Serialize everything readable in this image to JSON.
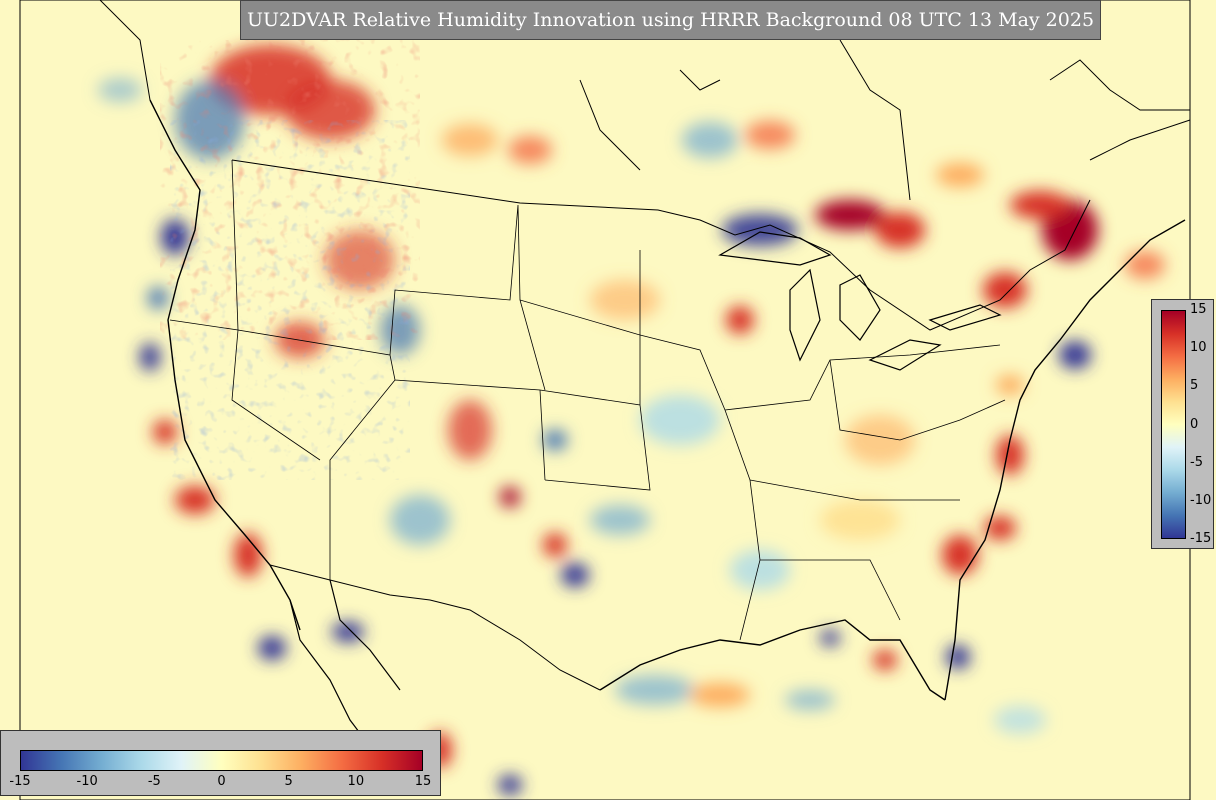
{
  "title": "UU2DVAR Relative Humidity Innovation using HRRR Background 08 UTC 13 May 2025",
  "colorbar": {
    "min": -15,
    "max": 15,
    "right_ticks": [
      "15",
      "10",
      "5",
      "0",
      "-5",
      "-10",
      "-15"
    ],
    "bottom_ticks": [
      "-15",
      "-10",
      "-5",
      "0",
      "5",
      "10",
      "15"
    ],
    "colors": [
      "#313695",
      "#4575b4",
      "#74add1",
      "#abd9e9",
      "#e0f3f8",
      "#ffffbf",
      "#fee090",
      "#fdae61",
      "#f46d43",
      "#d73027",
      "#a50026"
    ]
  },
  "map": {
    "background_color": "#fdf9c2",
    "boundary_color": "#000000"
  }
}
